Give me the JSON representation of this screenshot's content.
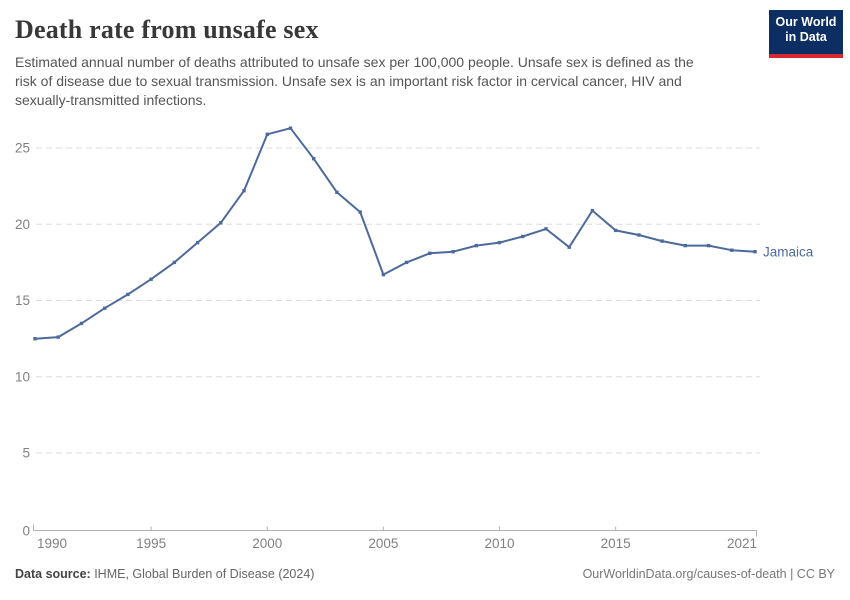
{
  "header": {
    "title": "Death rate from unsafe sex",
    "subtitle_lines": [
      "Estimated annual number of deaths attributed to unsafe sex per 100,000 people. Unsafe sex is defined as the",
      "risk of disease due to sexual transmission. Unsafe sex is an important risk factor in cervical cancer, HIV and",
      "sexually-transmitted infections."
    ],
    "logo": {
      "line1": "Our World",
      "line2": "in Data"
    }
  },
  "chart_data": {
    "type": "line",
    "title": "Death rate from unsafe sex",
    "x": [
      1990,
      1991,
      1992,
      1993,
      1994,
      1995,
      1996,
      1997,
      1998,
      1999,
      2000,
      2001,
      2002,
      2003,
      2004,
      2005,
      2006,
      2007,
      2008,
      2009,
      2010,
      2011,
      2012,
      2013,
      2014,
      2015,
      2016,
      2017,
      2018,
      2019,
      2020,
      2021
    ],
    "series": [
      {
        "name": "Jamaica",
        "color": "#4C6A9C",
        "values": [
          12.5,
          12.6,
          13.5,
          14.5,
          15.4,
          16.4,
          17.5,
          18.8,
          20.1,
          22.2,
          25.9,
          26.3,
          24.3,
          22.1,
          20.8,
          16.7,
          17.5,
          18.1,
          18.2,
          18.6,
          18.8,
          19.2,
          19.7,
          18.5,
          20.9,
          19.6,
          19.3,
          18.9,
          18.6,
          18.6,
          18.3,
          18.2
        ]
      }
    ],
    "xticks": [
      1990,
      1995,
      2000,
      2005,
      2010,
      2015,
      2021
    ],
    "yticks": [
      0,
      5,
      10,
      15,
      20,
      25
    ],
    "xlim": [
      1990,
      2021
    ],
    "ylim": [
      0,
      27.2
    ],
    "ylabel": "",
    "xlabel": "",
    "grid": "dashed-horizontal",
    "legend": "end-of-line-label"
  },
  "footer": {
    "source_label": "Data source:",
    "source_text": " IHME, Global Burden of Disease (2024)",
    "credit": "OurWorldinData.org/causes-of-death | CC BY"
  },
  "colors": {
    "line": "#4C6A9C",
    "grid": "#dddddd",
    "axis": "#b3b3b3",
    "tick_text": "#818181",
    "logo_bg": "#0d2e63",
    "logo_bar": "#d7282f"
  }
}
